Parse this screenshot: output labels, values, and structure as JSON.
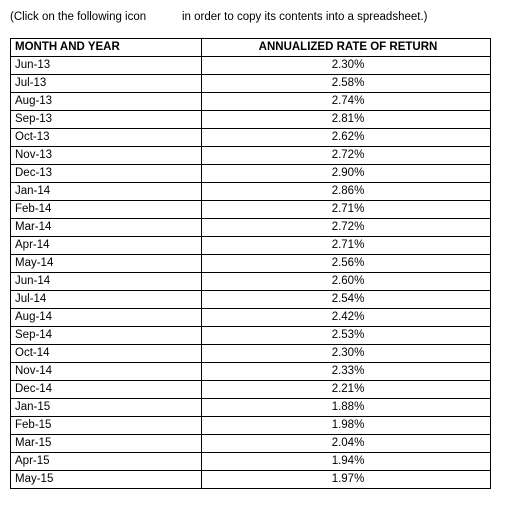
{
  "note": {
    "before_icon": "(Click on the following icon",
    "after_icon": "in order to copy its contents into a spreadsheet.)"
  },
  "table": {
    "header": [
      "MONTH AND YEAR",
      "ANNUALIZED RATE OF RETURN"
    ],
    "rows": [
      [
        "Jun-13",
        "2.30%"
      ],
      [
        "Jul-13",
        "2.58%"
      ],
      [
        "Aug-13",
        "2.74%"
      ],
      [
        "Sep-13",
        "2.81%"
      ],
      [
        "Oct-13",
        "2.62%"
      ],
      [
        "Nov-13",
        "2.72%"
      ],
      [
        "Dec-13",
        "2.90%"
      ],
      [
        "Jan-14",
        "2.86%"
      ],
      [
        "Feb-14",
        "2.71%"
      ],
      [
        "Mar-14",
        "2.72%"
      ],
      [
        "Apr-14",
        "2.71%"
      ],
      [
        "May-14",
        "2.56%"
      ],
      [
        "Jun-14",
        "2.60%"
      ],
      [
        "Jul-14",
        "2.54%"
      ],
      [
        "Aug-14",
        "2.42%"
      ],
      [
        "Sep-14",
        "2.53%"
      ],
      [
        "Oct-14",
        "2.30%"
      ],
      [
        "Nov-14",
        "2.33%"
      ],
      [
        "Dec-14",
        "2.21%"
      ],
      [
        "Jan-15",
        "1.88%"
      ],
      [
        "Feb-15",
        "1.98%"
      ],
      [
        "Mar-15",
        "2.04%"
      ],
      [
        "Apr-15",
        "1.94%"
      ],
      [
        "May-15",
        "1.97%"
      ]
    ]
  }
}
